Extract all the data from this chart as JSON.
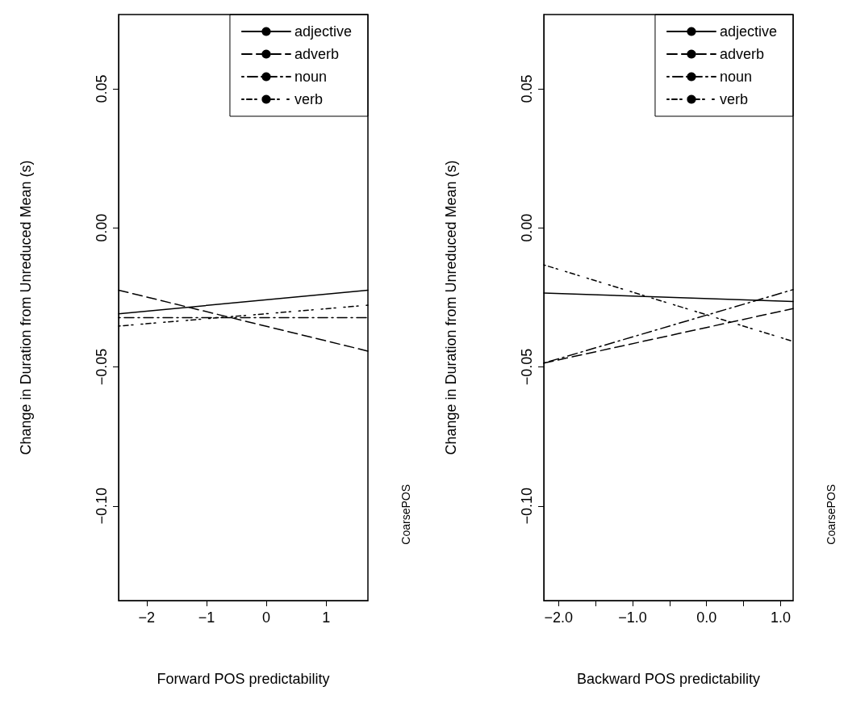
{
  "chart_data": [
    {
      "type": "line",
      "xlabel": "Forward POS predictability",
      "ylabel": "Change in Duration from Unreduced Mean (s)",
      "x": [
        -2.47,
        1.7
      ],
      "xlim": [
        -2.47,
        1.7
      ],
      "ylim": [
        -0.134,
        0.0767
      ],
      "xticks": [
        {
          "value": -2,
          "label": "−2"
        },
        {
          "value": -1,
          "label": "−1"
        },
        0,
        1
      ],
      "yticks": [
        {
          "value": -0.1,
          "label": "−0.10"
        },
        {
          "value": -0.05,
          "label": "−0.05"
        },
        {
          "value": 0,
          "label": "0.00"
        },
        0.05
      ],
      "series": [
        {
          "name": "adjective",
          "color": "#000000",
          "line_style": "solid",
          "values": [
            -0.0309,
            -0.0224
          ]
        },
        {
          "name": "adverb",
          "color": "#000000",
          "line_style": "dashed",
          "values": [
            -0.0224,
            -0.0443
          ]
        },
        {
          "name": "noun",
          "color": "#000000",
          "line_style": "dashdot",
          "values": [
            -0.0323,
            -0.0323
          ]
        },
        {
          "name": "verb",
          "color": "#000000",
          "line_style": "dotdash",
          "values": [
            -0.0353,
            -0.0278
          ]
        }
      ],
      "legend": "top right",
      "grid": false,
      "marker": "none",
      "annotations": [
        "CoarsePOS"
      ]
    },
    {
      "type": "line",
      "xlabel": "Backward POS predictability",
      "ylabel": "Change in Duration from Unreduced Mean (s)",
      "x": [
        -2.2,
        1.17
      ],
      "xlim": [
        -2.2,
        1.17
      ],
      "ylim": [
        -0.134,
        0.0767
      ],
      "xticks": [
        {
          "value": -2,
          "label": "−2.0"
        },
        {
          "value": -1.5,
          "label": null
        },
        {
          "value": -1,
          "label": "−1.0"
        },
        {
          "value": -0.5,
          "label": null
        },
        {
          "value": 0,
          "label": "0.0"
        },
        {
          "value": 0.5,
          "label": null
        },
        {
          "value": 1,
          "label": "1.0"
        }
      ],
      "yticks": [
        {
          "value": -0.1,
          "label": "−0.10"
        },
        {
          "value": -0.05,
          "label": "−0.05"
        },
        {
          "value": 0,
          "label": "0.00"
        },
        0.05
      ],
      "series": [
        {
          "name": "adjective",
          "color": "#000000",
          "line_style": "solid",
          "values": [
            -0.0234,
            -0.0265
          ]
        },
        {
          "name": "adverb",
          "color": "#000000",
          "line_style": "dashed",
          "values": [
            -0.0486,
            -0.029
          ]
        },
        {
          "name": "noun",
          "color": "#000000",
          "line_style": "dashdot",
          "values": [
            -0.0486,
            -0.0222
          ]
        },
        {
          "name": "verb",
          "color": "#000000",
          "line_style": "dotdash",
          "values": [
            -0.0133,
            -0.0408
          ]
        }
      ],
      "legend": "top right",
      "grid": false,
      "marker": "none",
      "annotations": [
        "CoarsePOS"
      ]
    }
  ]
}
